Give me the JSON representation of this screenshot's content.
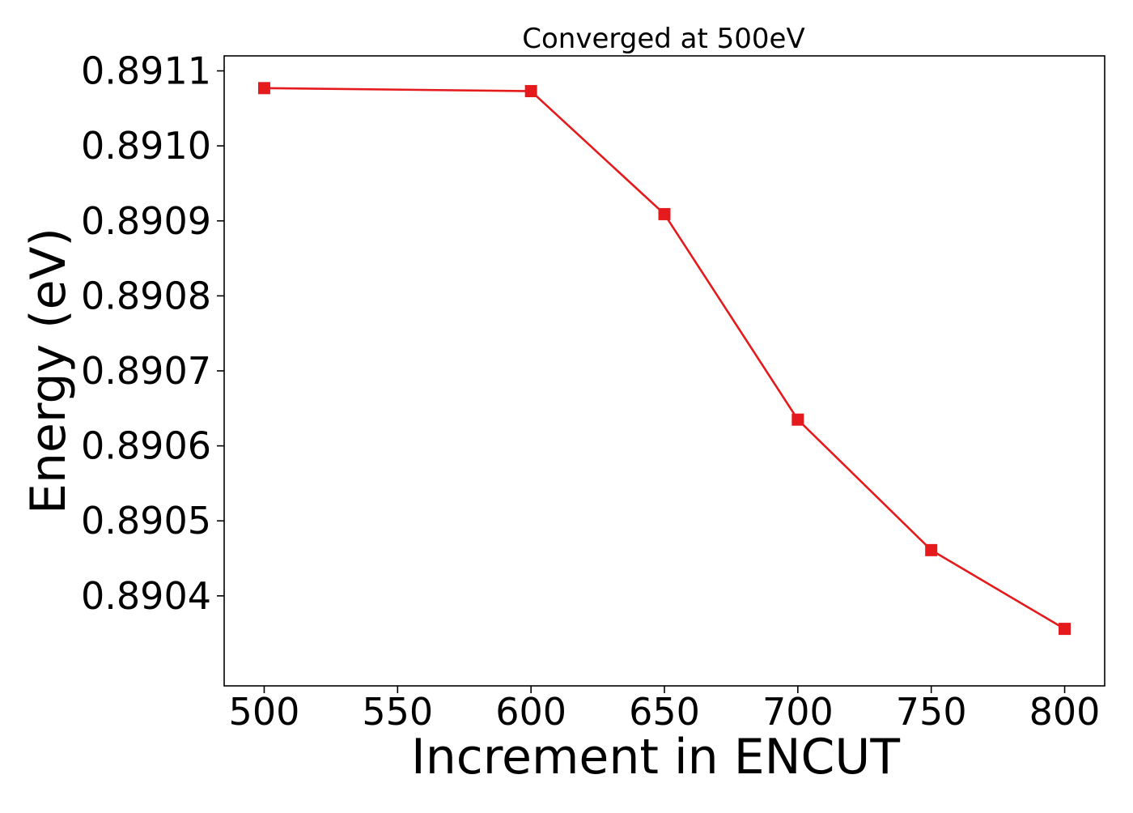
{
  "chart_data": {
    "type": "line",
    "title": "Converged at 500eV",
    "xlabel": "Increment in ENCUT",
    "ylabel": "Energy (eV)",
    "x": [
      500,
      600,
      650,
      700,
      750,
      800
    ],
    "series": [
      {
        "values": [
          0.891077,
          0.891073,
          0.890909,
          0.890635,
          0.890461,
          0.890356
        ],
        "color": "#e41a1c",
        "marker": "square"
      }
    ],
    "xlim": [
      485,
      815
    ],
    "ylim": [
      0.89028,
      0.89112
    ],
    "xticks": [
      500,
      550,
      600,
      650,
      700,
      750,
      800
    ],
    "xtick_labels": [
      "500",
      "550",
      "600",
      "650",
      "700",
      "750",
      "800"
    ],
    "yticks": [
      0.8904,
      0.8905,
      0.8906,
      0.8907,
      0.8908,
      0.8909,
      0.891,
      0.8911
    ],
    "ytick_labels": [
      "0.8904",
      "0.8905",
      "0.8906",
      "0.8907",
      "0.8908",
      "0.8909",
      "0.8910",
      "0.8911"
    ],
    "grid": false,
    "legend": "none"
  }
}
